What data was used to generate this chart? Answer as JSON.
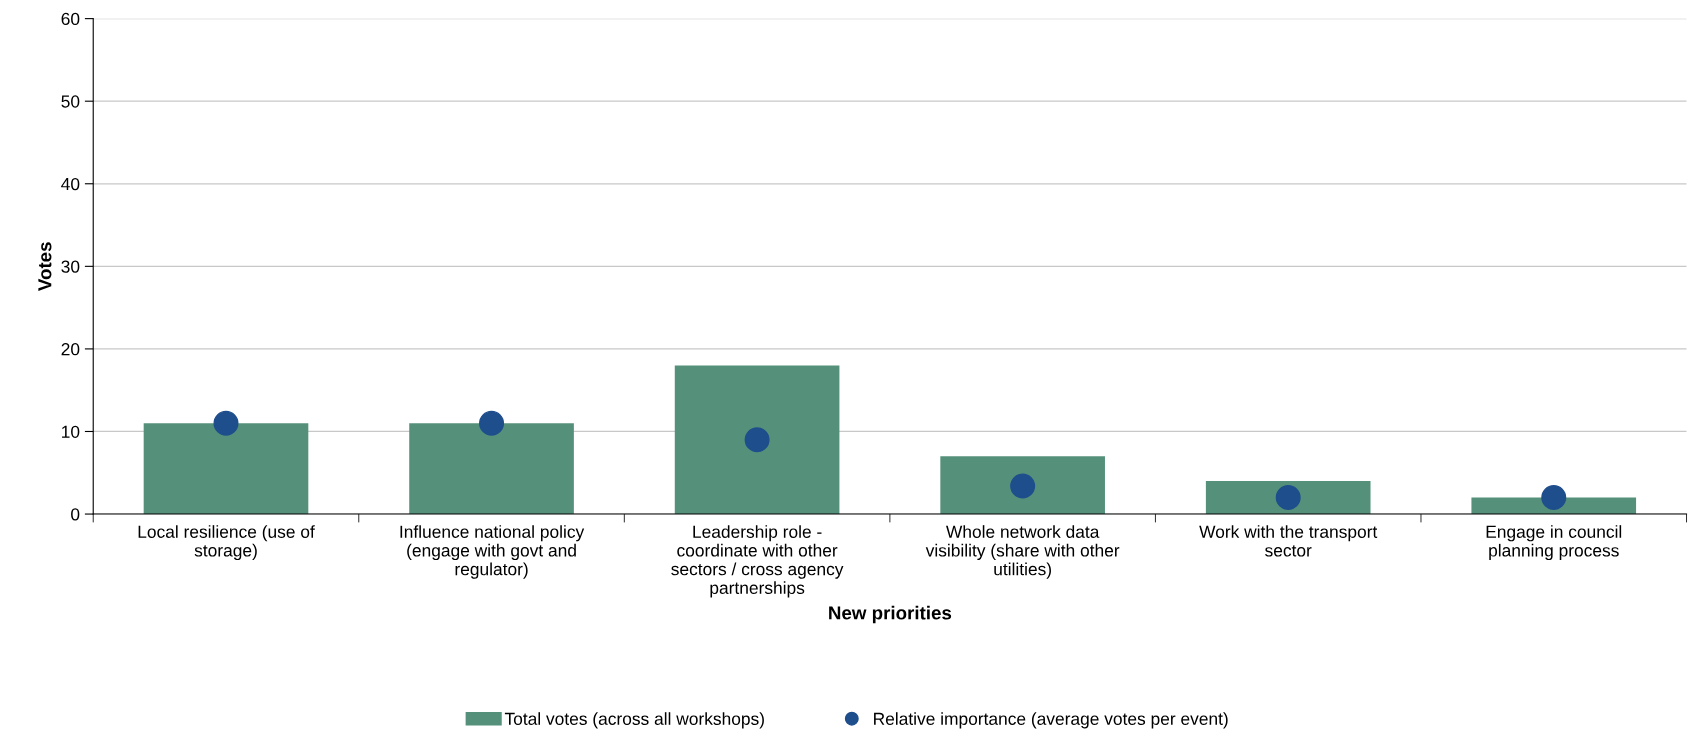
{
  "chart_data": {
    "type": "bar",
    "xlabel": "New priorities",
    "ylabel": "Votes",
    "categories": [
      "Local resilience (use of\nstorage)",
      "Influence national policy\n(engage with govt and\nregulator)",
      "Leadership role -\ncoordinate with other\nsectors / cross agency\npartnerships",
      "Whole network data\nvisibility (share with other\nutilities)",
      "Work with the transport\nsector",
      "Engage in council\nplanning process"
    ],
    "series": [
      {
        "name": "Total votes (across all workshops)",
        "color": "#55917a",
        "values": [
          11,
          11,
          18,
          7,
          4,
          2
        ]
      },
      {
        "name": "Relative importance (average votes per event)",
        "type": "scatter",
        "color": "#1f4e8c",
        "marker": "circle",
        "values": [
          11,
          11,
          9,
          3.4,
          2,
          2
        ]
      }
    ],
    "ylim": [
      0,
      60
    ],
    "yticks": [
      0,
      10,
      20,
      30,
      40,
      50,
      60
    ],
    "grid": "y",
    "legend": "bottom"
  }
}
